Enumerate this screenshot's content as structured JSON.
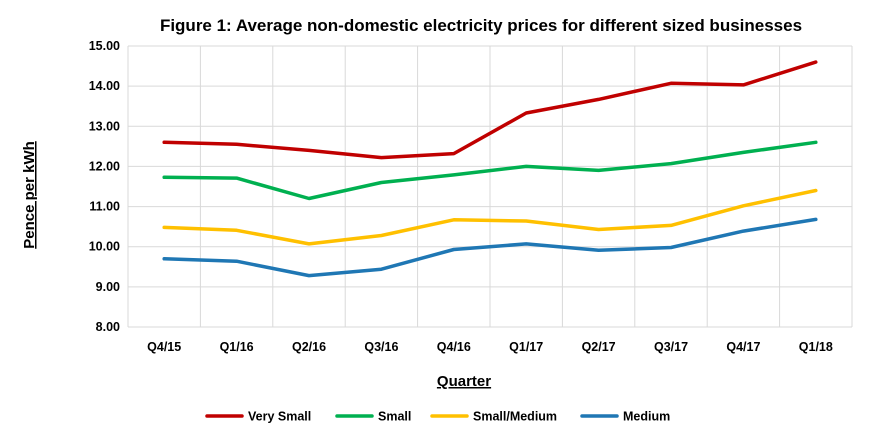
{
  "chart_data": {
    "type": "line",
    "title": "Figure 1: Average non-domestic electricity prices for different sized businesses",
    "xlabel": "Quarter",
    "ylabel": "Pence per kWh",
    "ylim": [
      8.0,
      15.0
    ],
    "yticks": [
      "8.00",
      "9.00",
      "10.00",
      "11.00",
      "12.00",
      "13.00",
      "14.00",
      "15.00"
    ],
    "categories": [
      "Q4/15",
      "Q1/16",
      "Q2/16",
      "Q3/16",
      "Q4/16",
      "Q1/17",
      "Q2/17",
      "Q3/17",
      "Q4/17",
      "Q1/18"
    ],
    "grid": "vertical and horizontal",
    "legend_position": "bottom",
    "series": [
      {
        "name": "Very Small",
        "color": "#c00000",
        "values": [
          12.6,
          12.55,
          12.4,
          12.22,
          12.32,
          13.33,
          13.67,
          14.07,
          14.03,
          14.6
        ]
      },
      {
        "name": "Small",
        "color": "#00b050",
        "values": [
          11.73,
          11.71,
          11.2,
          11.6,
          11.79,
          12.0,
          11.9,
          12.07,
          12.35,
          12.6
        ]
      },
      {
        "name": "Small/Medium",
        "color": "#ffc000",
        "values": [
          10.48,
          10.41,
          10.07,
          10.28,
          10.67,
          10.64,
          10.43,
          10.53,
          11.02,
          11.4
        ]
      },
      {
        "name": "Medium",
        "color": "#1f77b4",
        "values": [
          9.7,
          9.64,
          9.28,
          9.44,
          9.93,
          10.07,
          9.91,
          9.98,
          10.39,
          10.68
        ]
      }
    ]
  }
}
